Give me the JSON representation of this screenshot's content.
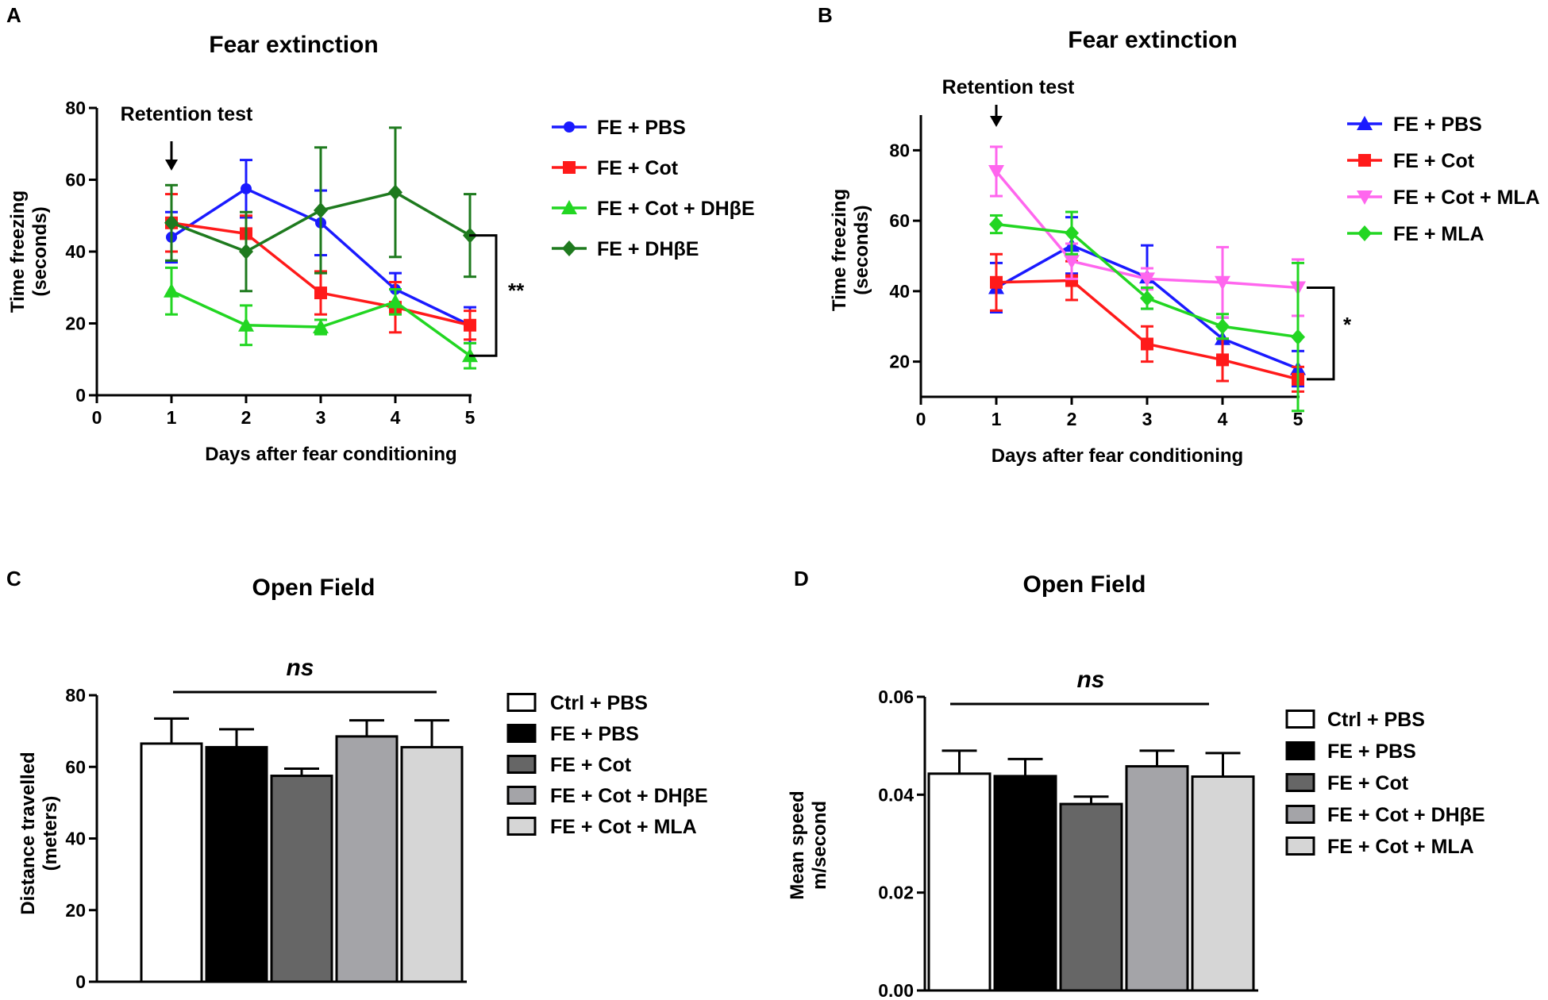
{
  "chart_data": [
    {
      "panel": "A",
      "type": "line",
      "title": "Fear extinction",
      "xlabel": "Days after fear conditioning",
      "ylabel": [
        "Time freezing",
        "(seconds)"
      ],
      "xlim": [
        0,
        5
      ],
      "ylim": [
        0,
        80
      ],
      "xticks": [
        0,
        1,
        2,
        3,
        4,
        5
      ],
      "yticks": [
        0,
        20,
        40,
        60,
        80
      ],
      "annotation": "Retention test",
      "significance": "**",
      "x": [
        1,
        2,
        3,
        4,
        5
      ],
      "series": [
        {
          "name": "FE + PBS",
          "color": "#1a1aff",
          "marker": "circle",
          "values": [
            44,
            57.5,
            48,
            29.5,
            19.5
          ],
          "err": [
            7,
            8,
            9,
            4.5,
            5
          ]
        },
        {
          "name": "FE + Cot",
          "color": "#ff1a1a",
          "marker": "square",
          "values": [
            48,
            45,
            28.5,
            24.5,
            19.5
          ],
          "err": [
            8,
            5,
            6,
            7,
            4
          ]
        },
        {
          "name": "FE + Cot + DHβE",
          "color": "#22d622",
          "marker": "triangle",
          "values": [
            29,
            19.5,
            19,
            26,
            11
          ],
          "err": [
            6.5,
            5.5,
            2,
            3.5,
            3.5
          ]
        },
        {
          "name": "FE + DHβE",
          "color": "#1e7a1e",
          "marker": "diamond",
          "values": [
            48,
            40,
            51.5,
            56.5,
            44.5
          ],
          "err": [
            10.5,
            11,
            17.5,
            18,
            11.5
          ]
        }
      ]
    },
    {
      "panel": "B",
      "type": "line",
      "title": "Fear extinction",
      "xlabel": "Days after fear conditioning",
      "ylabel": [
        "Time freezing",
        "(seconds)"
      ],
      "xlim": [
        0,
        5
      ],
      "ylim": [
        10,
        90
      ],
      "xticks": [
        0,
        1,
        2,
        3,
        4,
        5
      ],
      "yticks": [
        20,
        40,
        60,
        80
      ],
      "annotation": "Retention test",
      "significance": "*",
      "x": [
        1,
        2,
        3,
        4,
        5
      ],
      "series": [
        {
          "name": "FE + PBS",
          "color": "#1a1aff",
          "marker": "triangle",
          "values": [
            41,
            53,
            44,
            26.5,
            18
          ],
          "err": [
            7,
            8,
            9,
            6,
            5
          ]
        },
        {
          "name": "FE + Cot",
          "color": "#ff1a1a",
          "marker": "square",
          "values": [
            42.5,
            43,
            25,
            20.5,
            15
          ],
          "err": [
            8,
            5.5,
            5,
            6,
            3.5
          ]
        },
        {
          "name": "FE + Cot + MLA",
          "color": "#ff66ee",
          "marker": "triangle-down",
          "values": [
            74,
            48.5,
            43.5,
            42.5,
            41
          ],
          "err": [
            7,
            5,
            3,
            10,
            8
          ]
        },
        {
          "name": "FE + MLA",
          "color": "#22d622",
          "marker": "diamond",
          "values": [
            59,
            56.5,
            38,
            30,
            27
          ],
          "err": [
            2.5,
            6,
            3,
            3.5,
            21
          ]
        }
      ]
    },
    {
      "panel": "C",
      "type": "bar",
      "title": "Open Field",
      "ylabel": [
        "Distance travelled",
        "(meters)"
      ],
      "ylim": [
        0,
        80
      ],
      "yticks": [
        0,
        20,
        40,
        60,
        80
      ],
      "significance": "ns",
      "categories": [
        "Ctrl + PBS",
        "FE + PBS",
        "FE + Cot",
        "FE + Cot + DHβE",
        "FE + Cot + MLA"
      ],
      "values": [
        66.5,
        65.5,
        57.5,
        68.5,
        65.5
      ],
      "err": [
        7,
        5,
        2,
        4.5,
        7.5
      ],
      "colors": [
        "#ffffff",
        "#000000",
        "#666666",
        "#a4a4a8",
        "#d6d6d6"
      ]
    },
    {
      "panel": "D",
      "type": "bar",
      "title": "Open Field",
      "ylabel": [
        "Mean speed",
        "m/second"
      ],
      "ylim": [
        0,
        0.06
      ],
      "yticks": [
        0,
        0.02,
        0.04,
        0.06
      ],
      "ytick_labels": [
        "0.00",
        "0.02",
        "0.04",
        "0.06"
      ],
      "significance": "ns",
      "categories": [
        "Ctrl + PBS",
        "FE + PBS",
        "FE + Cot",
        "FE + Cot + DHβE",
        "FE + Cot + MLA"
      ],
      "values": [
        0.0443,
        0.0438,
        0.0381,
        0.0458,
        0.0437
      ],
      "err": [
        0.0047,
        0.0035,
        0.0015,
        0.0032,
        0.0048
      ],
      "colors": [
        "#ffffff",
        "#000000",
        "#666666",
        "#a4a4a8",
        "#d6d6d6"
      ]
    }
  ]
}
